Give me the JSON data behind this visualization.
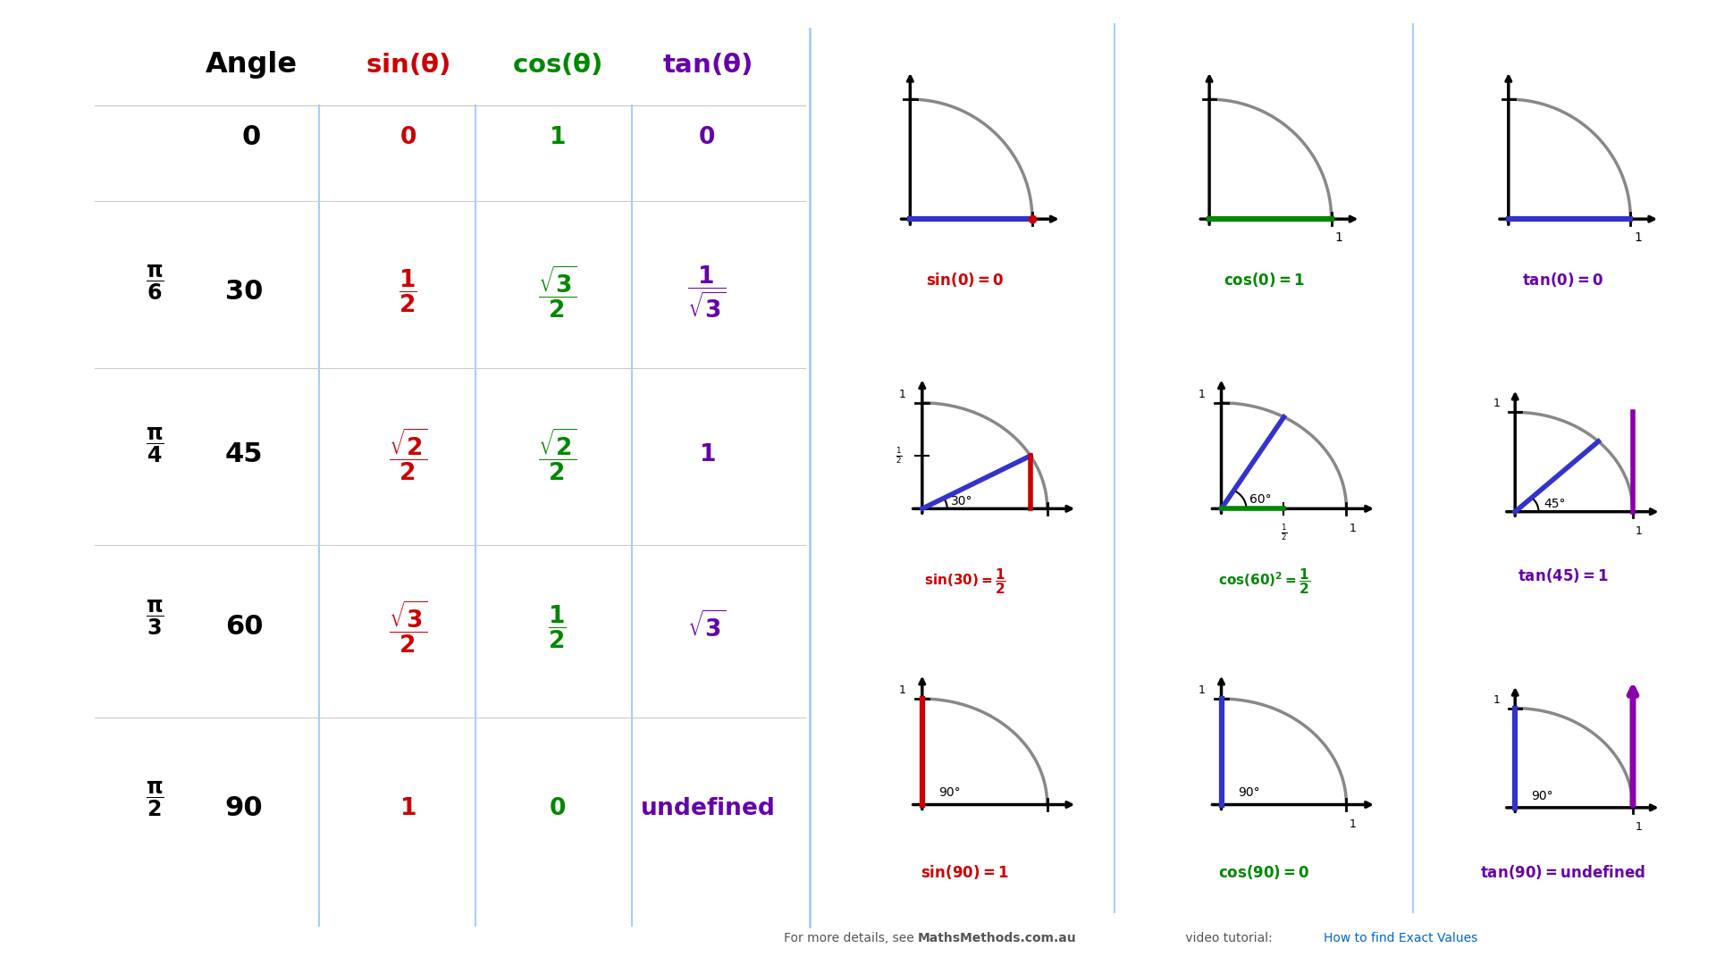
{
  "bg_color": "#ffffff",
  "chalkboard_color": "#3a3a3a",
  "title_row": [
    "Angle",
    "sin(θ)",
    "cos(θ)",
    "tan(θ)"
  ],
  "title_colors": [
    "#000000",
    "#cc0000",
    "#008800",
    "#6600aa"
  ],
  "sin_color": "#cc0000",
  "cos_color": "#008800",
  "tan_color": "#6600aa",
  "angle_color": "#000000",
  "blue": "#3333cc",
  "red": "#cc0000",
  "green": "#008800",
  "purple": "#8800aa",
  "arc_color": "#888888",
  "divider_color": "#aaccff",
  "row_div_color": "#cccccc",
  "footer_gray": "#555555",
  "footer_link": "#0066cc"
}
